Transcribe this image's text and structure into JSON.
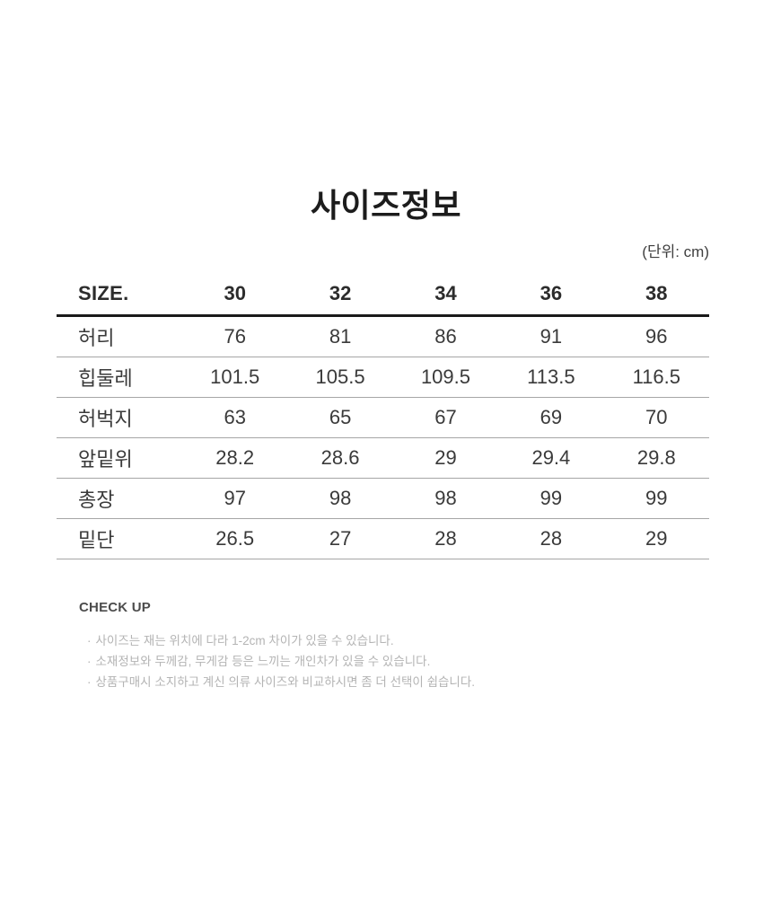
{
  "page": {
    "title": "사이즈정보",
    "units_label": "(단위: cm)"
  },
  "size_table": {
    "header": {
      "label": "SIZE.",
      "sizes": [
        "30",
        "32",
        "34",
        "36",
        "38"
      ]
    },
    "rows": [
      {
        "label": "허리",
        "values": [
          "76",
          "81",
          "86",
          "91",
          "96"
        ]
      },
      {
        "label": "힙둘레",
        "values": [
          "101.5",
          "105.5",
          "109.5",
          "113.5",
          "116.5"
        ]
      },
      {
        "label": "허벅지",
        "values": [
          "63",
          "65",
          "67",
          "69",
          "70"
        ]
      },
      {
        "label": "앞밑위",
        "values": [
          "28.2",
          "28.6",
          "29",
          "29.4",
          "29.8"
        ]
      },
      {
        "label": "총장",
        "values": [
          "97",
          "98",
          "98",
          "99",
          "99"
        ]
      },
      {
        "label": "밑단",
        "values": [
          "26.5",
          "27",
          "28",
          "28",
          "29"
        ]
      }
    ]
  },
  "check_up": {
    "title": "CHECK UP",
    "bullet": "·",
    "notes": [
      "사이즈는 재는 위치에 다라 1-2cm 차이가 있을 수 있습니다.",
      "소재정보와 두께감, 무게감 등은 느끼는 개인차가 있을 수 있습니다.",
      "상품구매시 소지하고 계신 의류 사이즈와 비교하시면 좀 더 선택이 쉽습니다."
    ]
  }
}
